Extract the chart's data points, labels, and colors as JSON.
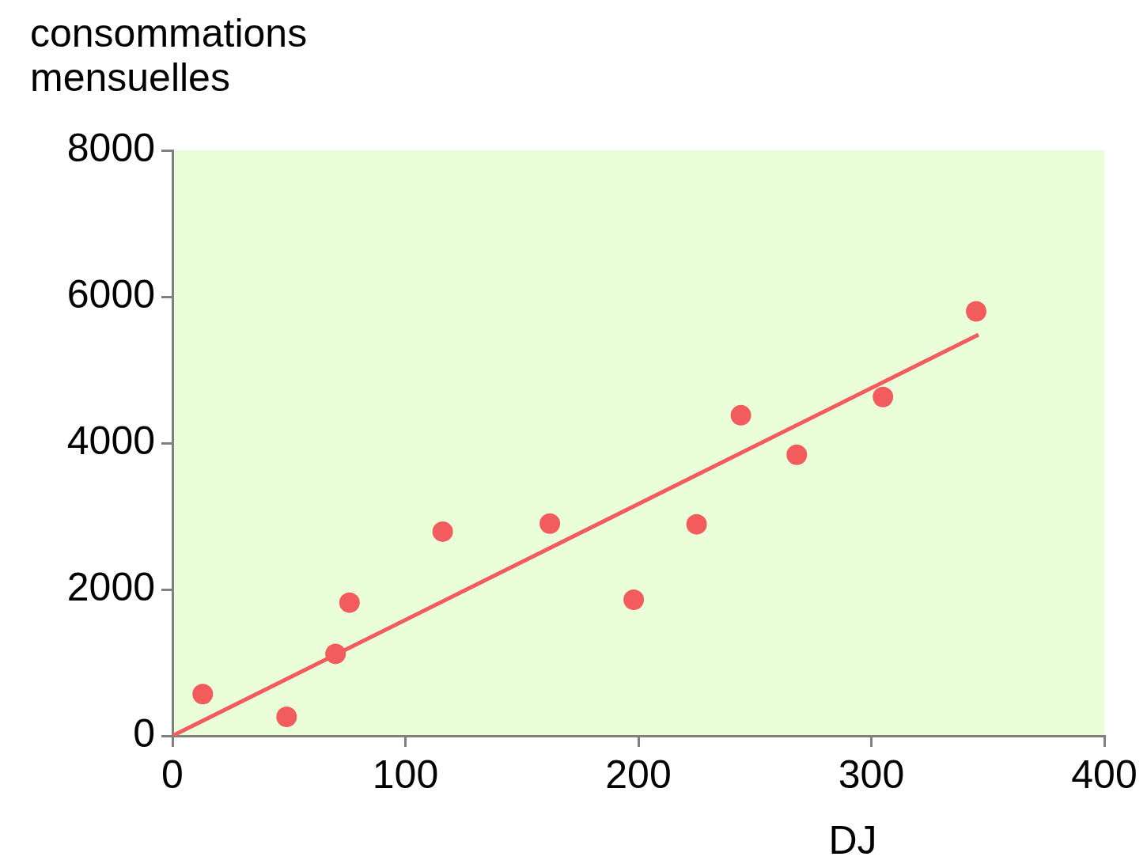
{
  "chart_data": {
    "type": "scatter",
    "ylabel": "consommations mensuelles",
    "xlabel": "DJ",
    "xlim": [
      0,
      400
    ],
    "xticks": [
      0,
      100,
      200,
      300,
      400
    ],
    "ylim": [
      0,
      8000
    ],
    "yticks": [
      0,
      2000,
      4000,
      6000,
      8000
    ],
    "grid": false,
    "legend": false,
    "marker": "circle",
    "series": [
      {
        "color": "#f25c5c",
        "x": [
          13,
          49,
          70,
          76,
          116,
          162,
          198,
          225,
          244,
          268,
          305,
          345
        ],
        "values": [
          570,
          260,
          1120,
          1820,
          2790,
          2900,
          1860,
          2890,
          4380,
          3840,
          4630,
          5800
        ]
      },
      {
        "type": "line",
        "color": "#f25c5c",
        "x": [
          0,
          346
        ],
        "values": [
          0,
          5480
        ],
        "line_style": "solid",
        "marker": "none"
      }
    ]
  }
}
